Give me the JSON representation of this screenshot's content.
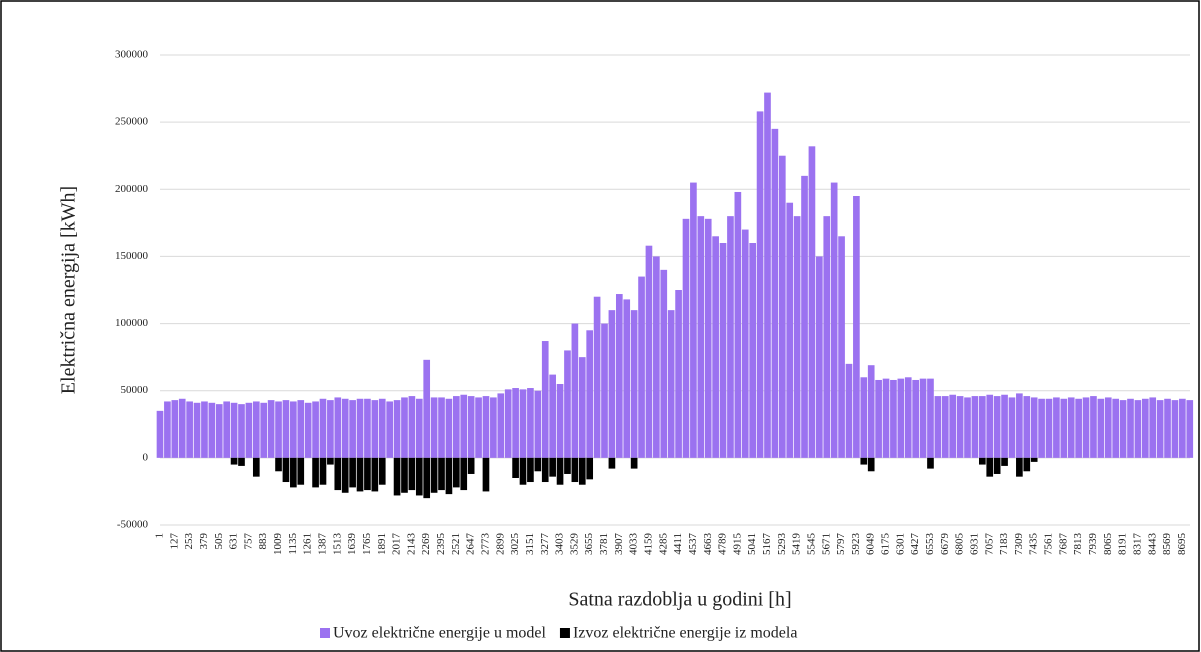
{
  "chart_data": {
    "type": "bar",
    "y_label": "Električna energija [kWh]",
    "x_label": "Satna razdoblja u godini [h]",
    "xlim": [
      1,
      8760
    ],
    "ylim": [
      -50000,
      300000
    ],
    "yticks": [
      -50000,
      0,
      50000,
      100000,
      150000,
      200000,
      250000,
      300000
    ],
    "xticks": [
      1,
      127,
      253,
      379,
      505,
      631,
      757,
      883,
      1009,
      1135,
      1261,
      1387,
      1513,
      1639,
      1765,
      1891,
      2017,
      2143,
      2269,
      2395,
      2521,
      2647,
      2773,
      2899,
      3025,
      3151,
      3277,
      3403,
      3529,
      3655,
      3781,
      3907,
      4033,
      4159,
      4285,
      4411,
      4537,
      4663,
      4789,
      4915,
      5041,
      5167,
      5293,
      5419,
      5545,
      5671,
      5797,
      5923,
      6049,
      6175,
      6301,
      6427,
      6553,
      6679,
      6805,
      6931,
      7057,
      7183,
      7309,
      7435,
      7561,
      7687,
      7813,
      7939,
      8065,
      8191,
      8317,
      8443,
      8569,
      8695
    ],
    "grid": true,
    "x": [
      1,
      64,
      127,
      190,
      253,
      316,
      379,
      442,
      505,
      568,
      631,
      694,
      757,
      820,
      883,
      946,
      1009,
      1072,
      1135,
      1198,
      1261,
      1324,
      1387,
      1450,
      1513,
      1576,
      1639,
      1702,
      1765,
      1828,
      1891,
      1954,
      2017,
      2080,
      2143,
      2206,
      2269,
      2332,
      2395,
      2458,
      2521,
      2584,
      2647,
      2710,
      2773,
      2836,
      2899,
      2962,
      3025,
      3088,
      3151,
      3214,
      3277,
      3340,
      3403,
      3466,
      3529,
      3592,
      3655,
      3718,
      3781,
      3844,
      3907,
      3970,
      4033,
      4096,
      4159,
      4222,
      4285,
      4348,
      4411,
      4474,
      4537,
      4600,
      4663,
      4726,
      4789,
      4852,
      4915,
      4978,
      5041,
      5104,
      5167,
      5230,
      5293,
      5356,
      5419,
      5482,
      5545,
      5608,
      5671,
      5734,
      5797,
      5860,
      5923,
      5986,
      6049,
      6112,
      6175,
      6238,
      6301,
      6364,
      6427,
      6490,
      6553,
      6616,
      6679,
      6742,
      6805,
      6868,
      6931,
      6994,
      7057,
      7120,
      7183,
      7246,
      7309,
      7372,
      7435,
      7498,
      7561,
      7624,
      7687,
      7750,
      7813,
      7876,
      7939,
      8002,
      8065,
      8128,
      8191,
      8254,
      8317,
      8380,
      8443,
      8506,
      8569,
      8632,
      8695,
      8758
    ],
    "series": [
      {
        "name": "Uvoz električne energije u model",
        "color": "#9b72f0",
        "values": [
          35000,
          42000,
          43000,
          44000,
          42000,
          41000,
          42000,
          41000,
          40000,
          42000,
          41000,
          40000,
          41000,
          42000,
          41000,
          43000,
          42000,
          43000,
          42000,
          43000,
          41000,
          42000,
          44000,
          43000,
          45000,
          44000,
          43000,
          44000,
          44000,
          43000,
          44000,
          42000,
          43000,
          45000,
          46000,
          44000,
          73000,
          45000,
          45000,
          44000,
          46000,
          47000,
          46000,
          45000,
          46000,
          45000,
          48000,
          51000,
          52000,
          51000,
          52000,
          50000,
          87000,
          62000,
          55000,
          80000,
          100000,
          75000,
          95000,
          120000,
          100000,
          110000,
          122000,
          118000,
          110000,
          135000,
          158000,
          150000,
          140000,
          110000,
          125000,
          178000,
          205000,
          180000,
          178000,
          165000,
          160000,
          180000,
          198000,
          170000,
          160000,
          258000,
          272000,
          245000,
          225000,
          190000,
          180000,
          210000,
          232000,
          150000,
          180000,
          205000,
          165000,
          70000,
          195000,
          60000,
          69000,
          58000,
          59000,
          58000,
          59000,
          60000,
          58000,
          59000,
          59000,
          46000,
          46000,
          47000,
          46000,
          45000,
          46000,
          46000,
          47000,
          46000,
          47000,
          45000,
          48000,
          46000,
          45000,
          44000,
          44000,
          45000,
          44000,
          45000,
          44000,
          45000,
          46000,
          44000,
          45000,
          44000,
          43000,
          44000,
          43000,
          44000,
          45000,
          43000,
          44000,
          43000,
          44000,
          43000
        ]
      },
      {
        "name": "Izvoz električne energije iz modela",
        "color": "#000000",
        "values": [
          0,
          0,
          0,
          0,
          0,
          0,
          0,
          0,
          0,
          0,
          -5000,
          -6000,
          0,
          -14000,
          0,
          0,
          -10000,
          -18000,
          -22000,
          -20000,
          0,
          -22000,
          -20000,
          -5000,
          -24000,
          -26000,
          -22000,
          -25000,
          -24000,
          -25000,
          -20000,
          0,
          -28000,
          -26000,
          -24000,
          -28000,
          -30000,
          -26000,
          -24000,
          -27000,
          -22000,
          -24000,
          -12000,
          0,
          -25000,
          0,
          0,
          0,
          -15000,
          -20000,
          -18000,
          -10000,
          -18000,
          -14000,
          -20000,
          -12000,
          -18000,
          -20000,
          -16000,
          0,
          0,
          -8000,
          0,
          0,
          -8000,
          0,
          0,
          0,
          0,
          0,
          0,
          0,
          0,
          0,
          0,
          0,
          0,
          0,
          0,
          0,
          0,
          0,
          0,
          0,
          0,
          0,
          0,
          0,
          0,
          0,
          0,
          0,
          0,
          0,
          0,
          -5000,
          -10000,
          0,
          0,
          0,
          0,
          0,
          0,
          0,
          -8000,
          0,
          0,
          0,
          0,
          0,
          0,
          -5000,
          -14000,
          -12000,
          -6000,
          0,
          -14000,
          -10000,
          -3000,
          0,
          0,
          0,
          0,
          0,
          0,
          0,
          0,
          0,
          0,
          0,
          0,
          0,
          0,
          0,
          0,
          0,
          0,
          0,
          0,
          0
        ]
      }
    ]
  }
}
